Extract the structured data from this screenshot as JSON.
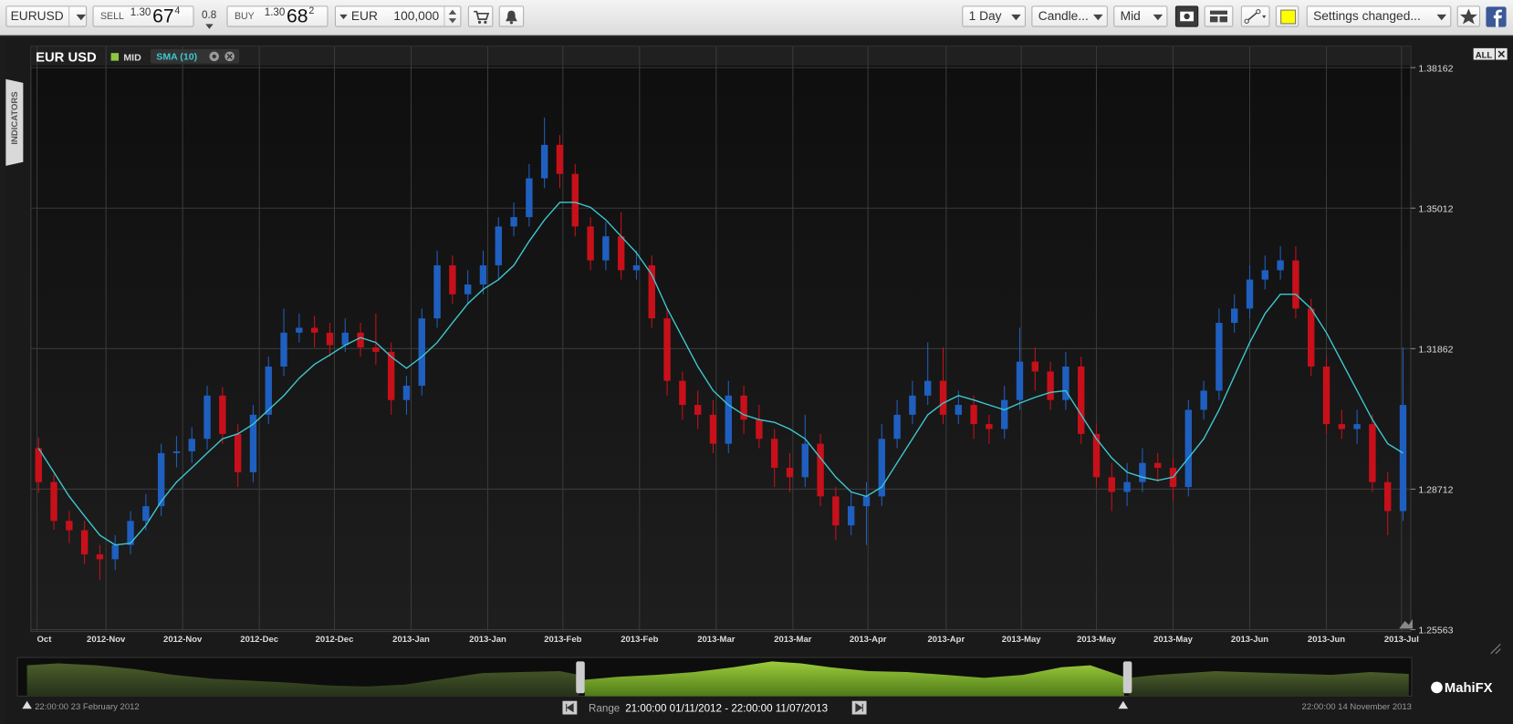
{
  "toolbar": {
    "symbol": "EURUSD",
    "sell": {
      "label": "SELL",
      "big_figure": "1.30",
      "pips": "67",
      "fraction": "4"
    },
    "spread": "0.8",
    "buy": {
      "label": "BUY",
      "big_figure": "1.30",
      "pips": "68",
      "fraction": "2"
    },
    "currency": "EUR",
    "amount": "100,000",
    "period": "1 Day",
    "chart_style": "Candle...",
    "price_type": "Mid",
    "settings": "Settings changed..."
  },
  "indicators_tab": "INDICATORS",
  "all_button": "ALL",
  "chart_data": {
    "type": "candlestick",
    "title": "EUR USD",
    "series": [
      {
        "name": "MID",
        "type": "candlestick",
        "color": "#8cc63f",
        "up_color": "#1f5fbf",
        "down_color": "#c8101a",
        "open": [
          1.2963,
          1.2887,
          1.28,
          1.2779,
          1.2725,
          1.2714,
          1.2746,
          1.28,
          1.2833,
          1.2952,
          1.2956,
          1.2984,
          1.3081,
          1.2995,
          1.2909,
          1.3038,
          1.3146,
          1.3222,
          1.3233,
          1.3222,
          1.3194,
          1.3222,
          1.3189,
          1.3179,
          1.3071,
          1.3103,
          1.3254,
          1.3373,
          1.3308,
          1.333,
          1.3373,
          1.346,
          1.3481,
          1.3568,
          1.3643,
          1.3578,
          1.346,
          1.3384,
          1.3438,
          1.3362,
          1.3373,
          1.3254,
          1.3114,
          1.306,
          1.3038,
          1.2973,
          1.3081,
          1.3027,
          1.2984,
          1.2919,
          1.2898,
          1.2973,
          1.2855,
          1.279,
          1.2833,
          1.2855,
          1.2984,
          1.3038,
          1.3081,
          1.3114,
          1.3038,
          1.306,
          1.3017,
          1.3006,
          1.3071,
          1.3157,
          1.3135,
          1.3071,
          1.3146,
          1.2995,
          1.2898,
          1.2865,
          1.2887,
          1.293,
          1.2919,
          1.2876,
          1.3049,
          1.3092,
          1.3244,
          1.3276,
          1.3341,
          1.3362,
          1.3384,
          1.3276,
          1.3146,
          1.3017,
          1.3006,
          1.3017,
          1.2887,
          1.2822
        ],
        "high": [
          1.2987,
          1.2905,
          1.2822,
          1.28,
          1.2746,
          1.2768,
          1.2822,
          1.286,
          1.2973,
          1.299,
          1.301,
          1.3103,
          1.31,
          1.3017,
          1.306,
          1.3168,
          1.3276,
          1.3265,
          1.326,
          1.3244,
          1.3254,
          1.3244,
          1.3265,
          1.32,
          1.3125,
          1.3276,
          1.3406,
          1.3395,
          1.3362,
          1.3406,
          1.3481,
          1.3514,
          1.36,
          1.3704,
          1.3665,
          1.36,
          1.3481,
          1.347,
          1.3492,
          1.3406,
          1.3395,
          1.3276,
          1.3135,
          1.3092,
          1.3071,
          1.3114,
          1.3103,
          1.306,
          1.3006,
          1.2952,
          1.3038,
          1.2995,
          1.2876,
          1.2865,
          1.2887,
          1.3017,
          1.3071,
          1.3114,
          1.32,
          1.3189,
          1.3092,
          1.3081,
          1.3038,
          1.3103,
          1.3233,
          1.3189,
          1.3157,
          1.3179,
          1.3168,
          1.3017,
          1.293,
          1.293,
          1.2963,
          1.2952,
          1.2941,
          1.3071,
          1.3114,
          1.3276,
          1.3308,
          1.3373,
          1.3395,
          1.3416,
          1.3416,
          1.3298,
          1.3168,
          1.3049,
          1.3049,
          1.3038,
          1.2909,
          1.3189
        ],
        "low": [
          1.2863,
          1.278,
          1.275,
          1.2703,
          1.2668,
          1.269,
          1.2725,
          1.2779,
          1.2811,
          1.292,
          1.293,
          1.296,
          1.2973,
          1.2876,
          1.2887,
          1.3017,
          1.3125,
          1.32,
          1.3189,
          1.3168,
          1.3179,
          1.3168,
          1.315,
          1.3038,
          1.3038,
          1.3081,
          1.3233,
          1.3287,
          1.3287,
          1.3308,
          1.3341,
          1.3438,
          1.346,
          1.3546,
          1.3546,
          1.3438,
          1.3362,
          1.3362,
          1.3341,
          1.3341,
          1.3233,
          1.3081,
          1.3027,
          1.3006,
          1.2952,
          1.2952,
          1.2995,
          1.2963,
          1.2876,
          1.2865,
          1.2876,
          1.2833,
          1.2757,
          1.2768,
          1.2746,
          1.2833,
          1.2963,
          1.3017,
          1.306,
          1.3017,
          1.3017,
          1.2984,
          1.2973,
          1.2984,
          1.3049,
          1.3092,
          1.3049,
          1.3049,
          1.2973,
          1.2876,
          1.2822,
          1.2833,
          1.2865,
          1.2887,
          1.2844,
          1.2855,
          1.3027,
          1.3071,
          1.3222,
          1.3254,
          1.3319,
          1.3341,
          1.3254,
          1.3125,
          1.2995,
          1.2984,
          1.2973,
          1.2865,
          1.2768,
          1.28
        ],
        "close": [
          1.2887,
          1.28,
          1.2779,
          1.2725,
          1.2714,
          1.2746,
          1.28,
          1.2833,
          1.2952,
          1.2956,
          1.2984,
          1.3081,
          1.2995,
          1.2909,
          1.3038,
          1.3146,
          1.3222,
          1.3233,
          1.3222,
          1.3194,
          1.3222,
          1.3189,
          1.3179,
          1.3071,
          1.3103,
          1.3254,
          1.3373,
          1.3308,
          1.333,
          1.3373,
          1.346,
          1.3481,
          1.3568,
          1.3643,
          1.3578,
          1.346,
          1.3384,
          1.3438,
          1.3362,
          1.3373,
          1.3254,
          1.3114,
          1.306,
          1.3038,
          1.2973,
          1.3081,
          1.3027,
          1.2984,
          1.2919,
          1.2898,
          1.2973,
          1.2855,
          1.279,
          1.2833,
          1.2855,
          1.2984,
          1.3038,
          1.3081,
          1.3114,
          1.3038,
          1.306,
          1.3017,
          1.3006,
          1.3071,
          1.3157,
          1.3135,
          1.3071,
          1.3146,
          1.2995,
          1.2898,
          1.2865,
          1.2887,
          1.293,
          1.2919,
          1.2876,
          1.3049,
          1.3092,
          1.3244,
          1.3276,
          1.3341,
          1.3362,
          1.3384,
          1.3276,
          1.3146,
          1.3017,
          1.3006,
          1.3017,
          1.2887,
          1.2822,
          1.306
        ]
      },
      {
        "name": "SMA (10)",
        "type": "line",
        "color": "#3fc8d0",
        "values": [
          1.2963,
          1.2909,
          1.2855,
          1.2811,
          1.2768,
          1.2746,
          1.275,
          1.279,
          1.2844,
          1.2887,
          1.2919,
          1.2952,
          1.2984,
          1.2995,
          1.3017,
          1.3049,
          1.3081,
          1.312,
          1.3151,
          1.3172,
          1.3194,
          1.3211,
          1.32,
          1.3168,
          1.3142,
          1.3168,
          1.32,
          1.3244,
          1.3287,
          1.3319,
          1.3341,
          1.3373,
          1.3427,
          1.3475,
          1.3514,
          1.3514,
          1.3503,
          1.3475,
          1.3438,
          1.3401,
          1.3352,
          1.3276,
          1.3211,
          1.3146,
          1.3092,
          1.306,
          1.3038,
          1.3027,
          1.3021,
          1.3006,
          1.2984,
          1.2941,
          1.2898,
          1.2865,
          1.2855,
          1.2876,
          1.293,
          1.2984,
          1.3038,
          1.3064,
          1.3081,
          1.3071,
          1.306,
          1.3049,
          1.3064,
          1.3077,
          1.3088,
          1.3092,
          1.3038,
          1.2984,
          1.2941,
          1.2909,
          1.2898,
          1.2891,
          1.2898,
          1.2941,
          1.2984,
          1.3049,
          1.3125,
          1.32,
          1.3265,
          1.3308,
          1.3308,
          1.3276,
          1.3222,
          1.3157,
          1.3092,
          1.3027,
          1.2973,
          1.2952
        ]
      }
    ],
    "xlim": [
      0,
      90
    ],
    "xticks": [
      {
        "value": 0.4,
        "label": "Oct"
      },
      {
        "value": 4.9,
        "label": "2012-Nov"
      },
      {
        "value": 9.9,
        "label": "2012-Nov"
      },
      {
        "value": 14.9,
        "label": "2012-Dec"
      },
      {
        "value": 19.8,
        "label": "2012-Dec"
      },
      {
        "value": 24.8,
        "label": "2013-Jan"
      },
      {
        "value": 29.8,
        "label": "2013-Jan"
      },
      {
        "value": 34.7,
        "label": "2013-Feb"
      },
      {
        "value": 39.7,
        "label": "2013-Feb"
      },
      {
        "value": 44.7,
        "label": "2013-Mar"
      },
      {
        "value": 49.7,
        "label": "2013-Mar"
      },
      {
        "value": 54.6,
        "label": "2013-Apr"
      },
      {
        "value": 59.7,
        "label": "2013-Apr"
      },
      {
        "value": 64.6,
        "label": "2013-May"
      },
      {
        "value": 69.5,
        "label": "2013-May"
      },
      {
        "value": 74.5,
        "label": "2013-May"
      },
      {
        "value": 79.5,
        "label": "2013-Jun"
      },
      {
        "value": 84.5,
        "label": "2013-Jun"
      },
      {
        "value": 89.4,
        "label": "2013-Jul"
      }
    ],
    "ylim": [
      1.2552,
      1.3864
    ],
    "yticks": [
      1.25563,
      1.28712,
      1.31862,
      1.35012,
      1.38162
    ],
    "grid": true
  },
  "navigator": {
    "start_label": "22:00:00 23 February 2012",
    "range_label": "Range",
    "range": "21:00:00 01/11/2012 - 22:00:00 11/07/2013",
    "end_label": "22:00:00 14 November 2013"
  },
  "brand": "MahiFX"
}
